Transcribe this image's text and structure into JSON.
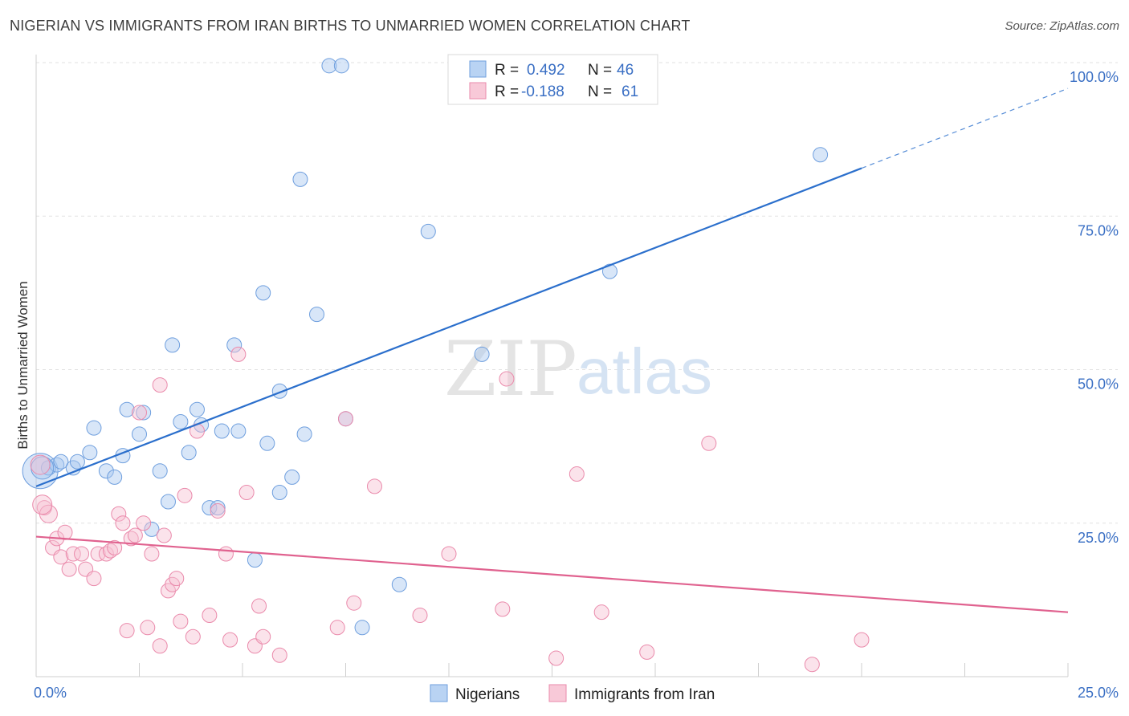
{
  "title": "NIGERIAN VS IMMIGRANTS FROM IRAN BIRTHS TO UNMARRIED WOMEN CORRELATION CHART",
  "source": "Source: ZipAtlas.com",
  "watermark": {
    "zip": "ZIP",
    "atlas": "atlas"
  },
  "chart_data": {
    "type": "scatter",
    "title": "NIGERIAN VS IMMIGRANTS FROM IRAN BIRTHS TO UNMARRIED WOMEN CORRELATION CHART",
    "xlabel": "",
    "ylabel": "Births to Unmarried Women",
    "xlim": [
      0,
      25
    ],
    "ylim": [
      0,
      100
    ],
    "x_ticks": [
      {
        "v": 0,
        "label": "0.0%"
      },
      {
        "v": 25,
        "label": "25.0%"
      }
    ],
    "y_ticks": [
      {
        "v": 25,
        "label": "25.0%"
      },
      {
        "v": 50,
        "label": "50.0%"
      },
      {
        "v": 75,
        "label": "75.0%"
      },
      {
        "v": 100,
        "label": "100.0%"
      }
    ],
    "grid": true,
    "legend_position": "top-center",
    "series": [
      {
        "name": "Nigerians",
        "color": "#a9c8ef",
        "edge": "#6f9fde",
        "line_color": "#2b6fcc",
        "R": "0.492",
        "N": "46",
        "trend": {
          "x0": 0,
          "y0": 31.0,
          "x1": 20.0,
          "y1": 82.8,
          "dash_to_x": 25.0,
          "dash_to_y": 95.8
        },
        "points": [
          [
            0.1,
            33.5
          ],
          [
            0.3,
            34.0
          ],
          [
            0.5,
            34.5
          ],
          [
            0.6,
            35.0
          ],
          [
            0.9,
            34.0
          ],
          [
            1.0,
            35.0
          ],
          [
            1.3,
            36.5
          ],
          [
            1.4,
            40.5
          ],
          [
            1.7,
            33.5
          ],
          [
            1.9,
            32.5
          ],
          [
            2.1,
            36.0
          ],
          [
            2.2,
            43.5
          ],
          [
            2.5,
            39.5
          ],
          [
            2.6,
            43.0
          ],
          [
            2.8,
            24.0
          ],
          [
            3.0,
            33.5
          ],
          [
            3.2,
            28.5
          ],
          [
            3.3,
            54.0
          ],
          [
            3.5,
            41.5
          ],
          [
            3.7,
            36.5
          ],
          [
            3.9,
            43.5
          ],
          [
            4.0,
            41.0
          ],
          [
            4.2,
            27.5
          ],
          [
            4.4,
            27.5
          ],
          [
            4.5,
            40.0
          ],
          [
            4.8,
            54.0
          ],
          [
            4.9,
            40.0
          ],
          [
            5.3,
            19.0
          ],
          [
            5.5,
            62.5
          ],
          [
            5.6,
            38.0
          ],
          [
            5.9,
            30.0
          ],
          [
            5.9,
            46.5
          ],
          [
            6.2,
            32.5
          ],
          [
            6.4,
            81.0
          ],
          [
            6.5,
            39.5
          ],
          [
            6.8,
            59.0
          ],
          [
            7.1,
            99.5
          ],
          [
            7.4,
            99.5
          ],
          [
            7.5,
            42.0
          ],
          [
            7.9,
            8.0
          ],
          [
            8.8,
            15.0
          ],
          [
            9.5,
            72.5
          ],
          [
            10.8,
            52.5
          ],
          [
            13.9,
            66.0
          ],
          [
            19.0,
            85.0
          ],
          [
            0.15,
            34.0
          ]
        ],
        "point_sizes": [
          22,
          9,
          9,
          9,
          9,
          9,
          9,
          9,
          9,
          9,
          9,
          9,
          9,
          9,
          9,
          9,
          9,
          9,
          9,
          9,
          9,
          9,
          9,
          9,
          9,
          9,
          9,
          9,
          9,
          9,
          9,
          9,
          9,
          9,
          9,
          9,
          9,
          9,
          9,
          9,
          9,
          9,
          9,
          9,
          9,
          14
        ]
      },
      {
        "name": "Immigrants from Iran",
        "color": "#f7c2d3",
        "edge": "#ea8aab",
        "line_color": "#e0628f",
        "R": "-0.188",
        "N": "61",
        "trend": {
          "x0": 0,
          "y0": 22.8,
          "x1": 25.0,
          "y1": 10.5
        },
        "points": [
          [
            0.1,
            34.5
          ],
          [
            0.2,
            27.5
          ],
          [
            0.3,
            26.5
          ],
          [
            0.4,
            21.0
          ],
          [
            0.5,
            22.5
          ],
          [
            0.6,
            19.5
          ],
          [
            0.7,
            23.5
          ],
          [
            0.8,
            17.5
          ],
          [
            0.9,
            20.0
          ],
          [
            1.1,
            20.0
          ],
          [
            1.2,
            17.5
          ],
          [
            1.4,
            16.0
          ],
          [
            1.5,
            20.0
          ],
          [
            1.7,
            20.0
          ],
          [
            1.8,
            20.5
          ],
          [
            1.9,
            21.0
          ],
          [
            2.0,
            26.5
          ],
          [
            2.1,
            25.0
          ],
          [
            2.2,
            7.5
          ],
          [
            2.3,
            22.5
          ],
          [
            2.4,
            23.0
          ],
          [
            2.5,
            43.0
          ],
          [
            2.6,
            25.0
          ],
          [
            2.7,
            8.0
          ],
          [
            2.8,
            20.0
          ],
          [
            3.0,
            47.5
          ],
          [
            3.0,
            5.0
          ],
          [
            3.1,
            23.0
          ],
          [
            3.2,
            14.0
          ],
          [
            3.3,
            15.0
          ],
          [
            3.4,
            16.0
          ],
          [
            3.5,
            9.0
          ],
          [
            3.6,
            29.5
          ],
          [
            3.8,
            6.5
          ],
          [
            3.9,
            40.0
          ],
          [
            4.2,
            10.0
          ],
          [
            4.4,
            27.0
          ],
          [
            4.6,
            20.0
          ],
          [
            4.7,
            6.0
          ],
          [
            4.9,
            52.5
          ],
          [
            5.1,
            30.0
          ],
          [
            5.3,
            5.0
          ],
          [
            5.4,
            11.5
          ],
          [
            5.5,
            6.5
          ],
          [
            5.9,
            3.5
          ],
          [
            7.3,
            8.0
          ],
          [
            7.5,
            42.0
          ],
          [
            7.7,
            12.0
          ],
          [
            8.2,
            31.0
          ],
          [
            9.3,
            10.0
          ],
          [
            10.0,
            20.0
          ],
          [
            11.3,
            11.0
          ],
          [
            11.4,
            48.5
          ],
          [
            12.6,
            3.0
          ],
          [
            13.1,
            33.0
          ],
          [
            13.7,
            10.5
          ],
          [
            14.8,
            4.0
          ],
          [
            16.3,
            38.0
          ],
          [
            18.8,
            2.0
          ],
          [
            20.0,
            6.0
          ],
          [
            0.15,
            28.0
          ]
        ],
        "point_sizes": [
          12,
          9,
          11,
          9,
          9,
          9,
          9,
          9,
          9,
          9,
          9,
          9,
          9,
          9,
          9,
          9,
          9,
          9,
          9,
          9,
          9,
          9,
          9,
          9,
          9,
          9,
          9,
          9,
          9,
          9,
          9,
          9,
          9,
          9,
          9,
          9,
          9,
          9,
          9,
          9,
          9,
          9,
          9,
          9,
          9,
          9,
          9,
          9,
          9,
          9,
          9,
          9,
          9,
          9,
          9,
          9,
          9,
          9,
          9,
          9,
          12
        ]
      }
    ]
  },
  "legend": {
    "r_label": "R =",
    "n_label": "N =",
    "rows": [
      {
        "r": "0.492",
        "n": "46"
      },
      {
        "r": "-0.188",
        "n": "61"
      }
    ]
  },
  "bottom_legend": [
    "Nigerians",
    "Immigrants from Iran"
  ]
}
